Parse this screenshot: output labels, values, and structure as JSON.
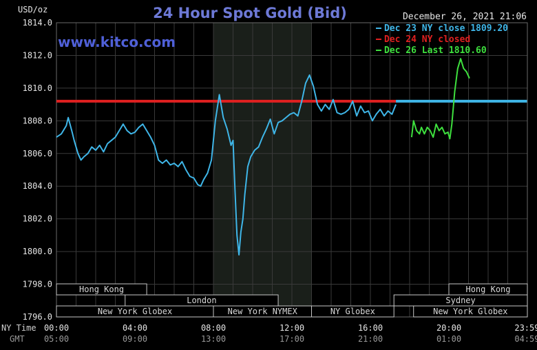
{
  "chart_data": {
    "type": "line",
    "title": "24 Hour Spot Gold (Bid)",
    "ylabel": "USD/oz",
    "watermark": "www.kitco.com",
    "timestamp": "December 26, 2021 21:06",
    "ylim": [
      1796.0,
      1814.0
    ],
    "y_ticks": [
      "1814.0",
      "1812.0",
      "1810.0",
      "1808.0",
      "1806.0",
      "1804.0",
      "1802.0",
      "1800.0",
      "1798.0",
      "1796.0"
    ],
    "x_tick_row_label": "NY Time",
    "x_ticks": [
      "00:00",
      "04:00",
      "08:00",
      "12:00",
      "16:00",
      "20:00",
      "23:59"
    ],
    "gmt_row_label": "GMT",
    "gmt_ticks": [
      "05:00",
      "09:00",
      "13:00",
      "17:00",
      "21:00",
      "01:00",
      "04:59"
    ],
    "grid": true,
    "legend_position": "top-right",
    "legend": [
      {
        "label": "Dec 23 NY close 1809.20",
        "color": "#3fb6e8"
      },
      {
        "label": "Dec 24 NY closed",
        "color": "#e02020"
      },
      {
        "label": "Dec 26 Last 1810.60",
        "color": "#3ee03e"
      }
    ],
    "reference_lines": [
      {
        "name": "Dec 24 NY closed",
        "value": 1809.2,
        "x_from": 0,
        "x_to": 17.3,
        "color": "#e02020"
      },
      {
        "name": "Dec 23 NY close 1809.20",
        "value": 1809.2,
        "x_from": 17.3,
        "x_to": 23.98,
        "color": "#3fb6e8"
      }
    ],
    "shaded_hours": [
      8.0,
      13.0
    ],
    "sessions": [
      {
        "label": "Hong Kong",
        "start": 0.0,
        "end": 4.6
      },
      {
        "label": "London",
        "start": 3.5,
        "end": 11.3
      },
      {
        "label": "New York Globex",
        "start": 0.0,
        "end": 8.0
      },
      {
        "label": "New York NYMEX",
        "start": 8.0,
        "end": 13.0
      },
      {
        "label": "NY Globex",
        "start": 13.0,
        "end": 17.2
      },
      {
        "label": "Hong Kong",
        "start": 20.0,
        "end": 24.0
      },
      {
        "label": "Sydney",
        "start": 17.2,
        "end": 24.0
      },
      {
        "label": "New York Globex",
        "start": 18.2,
        "end": 24.0
      }
    ],
    "series": [
      {
        "name": "Dec 23 NY close 1809.20",
        "color": "#3fb6e8",
        "x": [
          0.0,
          0.25,
          0.5,
          0.6,
          0.8,
          0.9,
          1.0,
          1.1,
          1.25,
          1.4,
          1.6,
          1.8,
          2.0,
          2.2,
          2.4,
          2.6,
          2.8,
          3.0,
          3.2,
          3.4,
          3.6,
          3.8,
          4.0,
          4.2,
          4.4,
          4.6,
          4.8,
          5.0,
          5.2,
          5.4,
          5.6,
          5.8,
          6.0,
          6.2,
          6.4,
          6.6,
          6.8,
          7.0,
          7.2,
          7.35,
          7.5,
          7.7,
          7.9,
          8.1,
          8.3,
          8.5,
          8.7,
          8.9,
          9.0,
          9.1,
          9.2,
          9.3,
          9.4,
          9.5,
          9.6,
          9.75,
          9.9,
          10.1,
          10.3,
          10.5,
          10.7,
          10.9,
          11.1,
          11.3,
          11.5,
          11.7,
          11.9,
          12.1,
          12.3,
          12.5,
          12.7,
          12.9,
          13.1,
          13.3,
          13.5,
          13.7,
          13.9,
          14.1,
          14.3,
          14.5,
          14.7,
          14.9,
          15.1,
          15.3,
          15.5,
          15.7,
          15.9,
          16.1,
          16.3,
          16.5,
          16.7,
          16.9,
          17.1,
          17.3
        ],
        "values": [
          1807.0,
          1807.2,
          1807.7,
          1808.2,
          1807.3,
          1806.8,
          1806.4,
          1806.0,
          1805.6,
          1805.8,
          1806.0,
          1806.4,
          1806.2,
          1806.5,
          1806.1,
          1806.6,
          1806.8,
          1807.0,
          1807.4,
          1807.8,
          1807.4,
          1807.2,
          1807.3,
          1807.6,
          1807.8,
          1807.4,
          1807.0,
          1806.5,
          1805.6,
          1805.4,
          1805.6,
          1805.3,
          1805.4,
          1805.2,
          1805.5,
          1805.0,
          1804.6,
          1804.5,
          1804.1,
          1804.0,
          1804.4,
          1804.8,
          1805.6,
          1808.0,
          1809.6,
          1808.2,
          1807.5,
          1806.5,
          1806.8,
          1803.8,
          1801.0,
          1799.8,
          1801.2,
          1802.0,
          1803.5,
          1805.2,
          1805.8,
          1806.2,
          1806.4,
          1807.0,
          1807.5,
          1808.1,
          1807.2,
          1807.9,
          1808.0,
          1808.2,
          1808.4,
          1808.5,
          1808.3,
          1809.2,
          1810.3,
          1810.8,
          1810.1,
          1809.0,
          1808.6,
          1809.0,
          1808.7,
          1809.3,
          1808.5,
          1808.4,
          1808.5,
          1808.7,
          1809.2,
          1808.3,
          1808.9,
          1808.5,
          1808.6,
          1808.0,
          1808.4,
          1808.7,
          1808.3,
          1808.6,
          1808.4,
          1809.0
        ]
      },
      {
        "name": "Dec 26 Last 1810.60",
        "color": "#3ee03e",
        "x": [
          18.1,
          18.2,
          18.35,
          18.5,
          18.6,
          18.75,
          18.9,
          19.05,
          19.2,
          19.35,
          19.5,
          19.65,
          19.8,
          19.95,
          20.05,
          20.15,
          20.3,
          20.45,
          20.6,
          20.75,
          20.9,
          21.05
        ],
        "values": [
          1807.0,
          1808.0,
          1807.4,
          1807.2,
          1807.6,
          1807.2,
          1807.6,
          1807.4,
          1807.0,
          1807.8,
          1807.4,
          1807.6,
          1807.2,
          1807.3,
          1806.9,
          1807.8,
          1809.8,
          1811.2,
          1811.8,
          1811.2,
          1811.0,
          1810.6
        ]
      }
    ]
  }
}
